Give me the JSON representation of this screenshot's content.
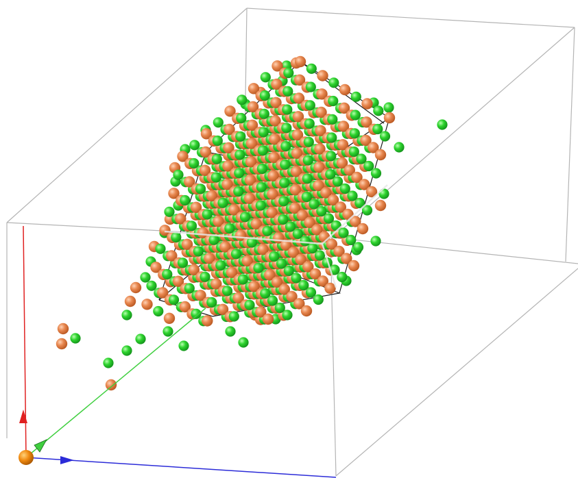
{
  "scene": {
    "description_labels": [],
    "colors": {
      "background": "#ffffff",
      "box_edges": "#b4b4b4",
      "cell_edges": "#1a1a1a",
      "atom_orange": "#e8874f",
      "atom_orange_dark": "#b8561f",
      "atom_green": "#2ed42e",
      "atom_green_dark": "#12901a",
      "axis_x": "#2b2bd8",
      "axis_y": "#e02020",
      "axis_z": "#3fcf3f",
      "origin_atom": "#f08a10"
    },
    "icons": {
      "atom_a": "orange-atom-icon",
      "atom_b": "green-atom-icon",
      "origin": "origin-atom-icon",
      "axis_arrow": "axis-arrowhead-icon"
    }
  }
}
